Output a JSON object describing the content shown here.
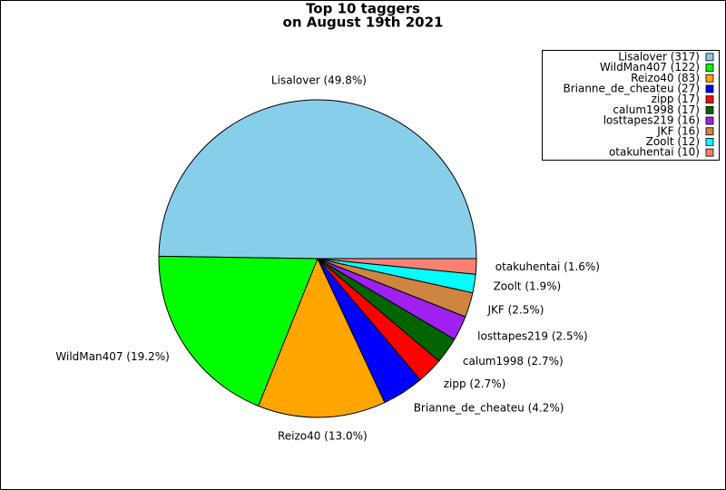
{
  "chart_data": {
    "type": "pie",
    "title": "Top 10 taggers",
    "subtitle": "on August 19th 2021",
    "categories": [
      "Lisalover",
      "WildMan407",
      "Reizo40",
      "Brianne_de_cheateu",
      "zipp",
      "calum1998",
      "losttapes219",
      "JKF",
      "Zoolt",
      "otakuhentai"
    ],
    "values": [
      317,
      122,
      83,
      27,
      17,
      17,
      16,
      16,
      12,
      10
    ],
    "value_labels": [
      "Lisalover (49.8%)",
      "WildMan407 (19.2%)",
      "Reizo40 (13.0%)",
      "Brianne_de_cheateu (4.2%)",
      "zipp (2.7%)",
      "calum1998 (2.7%)",
      "losttapes219 (2.5%)",
      "JKF (2.5%)",
      "Zoolt (1.9%)",
      "otakuhentai (1.6%)"
    ],
    "legend_labels": [
      "Lisalover (317)",
      "WildMan407 (122)",
      "Reizo40 (83)",
      "Brianne_de_cheateu (27)",
      "zipp (17)",
      "calum1998 (17)",
      "losttapes219 (16)",
      "JKF (16)",
      "Zoolt (12)",
      "otakuhentai (10)"
    ],
    "colors": [
      "#87ceeb",
      "#00ff00",
      "#ffa500",
      "#0000ff",
      "#ff0000",
      "#006400",
      "#a020f0",
      "#cd853f",
      "#00ffff",
      "#fa8072"
    ],
    "legend": "upper right"
  }
}
